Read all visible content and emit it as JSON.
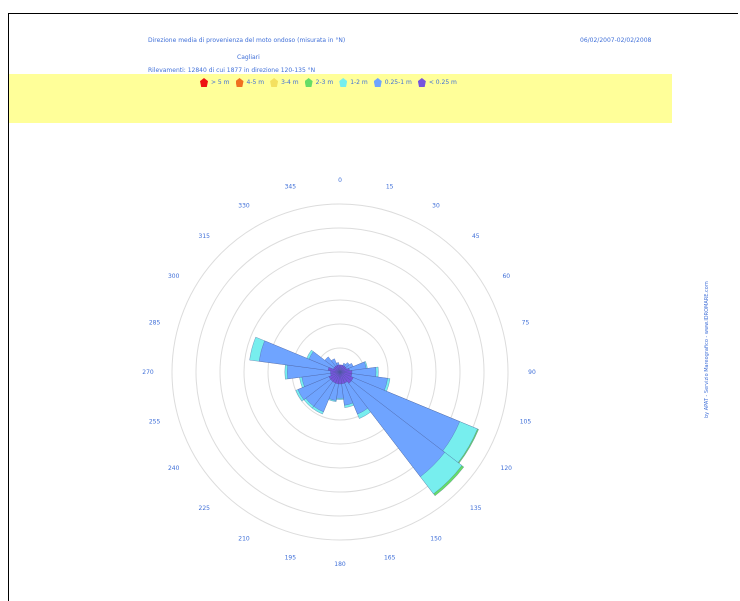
{
  "header": {
    "title": "Direzione media di provenienza del moto ondoso (misurata in °N)",
    "date_range": "06/02/2007-02/02/2008",
    "location": "Cagliari",
    "observations": "Rilevamenti: 12840 di cui 1877 in direzione 120-135 °N"
  },
  "side_credit": "by APAT - Servizio Mareografico - www.IDROMARE.com",
  "legend": [
    {
      "label": "> 5 m",
      "color": "#ee1111",
      "icon": "red-pentagon-icon"
    },
    {
      "label": "4-5 m",
      "color": "#f07020",
      "icon": "orange-pentagon-icon"
    },
    {
      "label": "3-4 m",
      "color": "#f4e060",
      "icon": "yellow-pentagon-icon"
    },
    {
      "label": "2-3 m",
      "color": "#66dd66",
      "icon": "green-pentagon-icon"
    },
    {
      "label": "1-2 m",
      "color": "#77eeee",
      "icon": "cyan-pentagon-icon"
    },
    {
      "label": "0.25-1 m",
      "color": "#6fa4ff",
      "icon": "blue-pentagon-icon"
    },
    {
      "label": "< 0.25 m",
      "color": "#7755dd",
      "icon": "purple-pentagon-icon"
    }
  ],
  "chart_data": {
    "type": "polar-area",
    "angle_ticks": [
      "0",
      "15",
      "30",
      "45",
      "60",
      "75",
      "90",
      "105",
      "120",
      "135",
      "150",
      "165",
      "180",
      "195",
      "210",
      "225",
      "240",
      "255",
      "270",
      "285",
      "300",
      "315",
      "330",
      "345"
    ],
    "rings": 7,
    "r_max": 7,
    "grid": true,
    "sectors": [
      {
        "dir": 0,
        "bands": [
          0.3,
          0.0,
          0.0,
          0.0
        ]
      },
      {
        "dir": 15,
        "bands": [
          0.3,
          0.0,
          0.0,
          0.0
        ]
      },
      {
        "dir": 30,
        "bands": [
          0.3,
          0.1,
          0.0,
          0.0
        ]
      },
      {
        "dir": 45,
        "bands": [
          0.3,
          0.2,
          0.0,
          0.0
        ]
      },
      {
        "dir": 60,
        "bands": [
          0.3,
          0.3,
          0.0,
          0.0
        ]
      },
      {
        "dir": 75,
        "bands": [
          0.4,
          0.7,
          0.05,
          0.0
        ]
      },
      {
        "dir": 90,
        "bands": [
          0.5,
          1.0,
          0.1,
          0.0
        ]
      },
      {
        "dir": 105,
        "bands": [
          0.5,
          1.5,
          0.1,
          0.0
        ]
      },
      {
        "dir": 120,
        "bands": [
          0.6,
          4.8,
          0.8,
          0.05
        ]
      },
      {
        "dir": 135,
        "bands": [
          0.6,
          4.9,
          0.9,
          0.1
        ]
      },
      {
        "dir": 150,
        "bands": [
          0.5,
          1.4,
          0.2,
          0.0
        ]
      },
      {
        "dir": 165,
        "bands": [
          0.5,
          0.9,
          0.1,
          0.0
        ]
      },
      {
        "dir": 180,
        "bands": [
          0.5,
          0.6,
          0.05,
          0.0
        ]
      },
      {
        "dir": 195,
        "bands": [
          0.5,
          0.7,
          0.05,
          0.0
        ]
      },
      {
        "dir": 210,
        "bands": [
          0.5,
          1.3,
          0.1,
          0.0
        ]
      },
      {
        "dir": 225,
        "bands": [
          0.5,
          1.3,
          0.1,
          0.0
        ]
      },
      {
        "dir": 240,
        "bands": [
          0.5,
          1.4,
          0.1,
          0.0
        ]
      },
      {
        "dir": 255,
        "bands": [
          0.4,
          1.2,
          0.1,
          0.0
        ]
      },
      {
        "dir": 270,
        "bands": [
          0.4,
          1.8,
          0.1,
          0.0
        ]
      },
      {
        "dir": 285,
        "bands": [
          0.5,
          2.9,
          0.4,
          0.0
        ]
      },
      {
        "dir": 300,
        "bands": [
          0.3,
          1.1,
          0.1,
          0.0
        ]
      },
      {
        "dir": 315,
        "bands": [
          0.3,
          0.5,
          0.0,
          0.0
        ]
      },
      {
        "dir": 330,
        "bands": [
          0.3,
          0.3,
          0.0,
          0.0
        ]
      },
      {
        "dir": 345,
        "bands": [
          0.3,
          0.1,
          0.0,
          0.0
        ]
      }
    ]
  }
}
